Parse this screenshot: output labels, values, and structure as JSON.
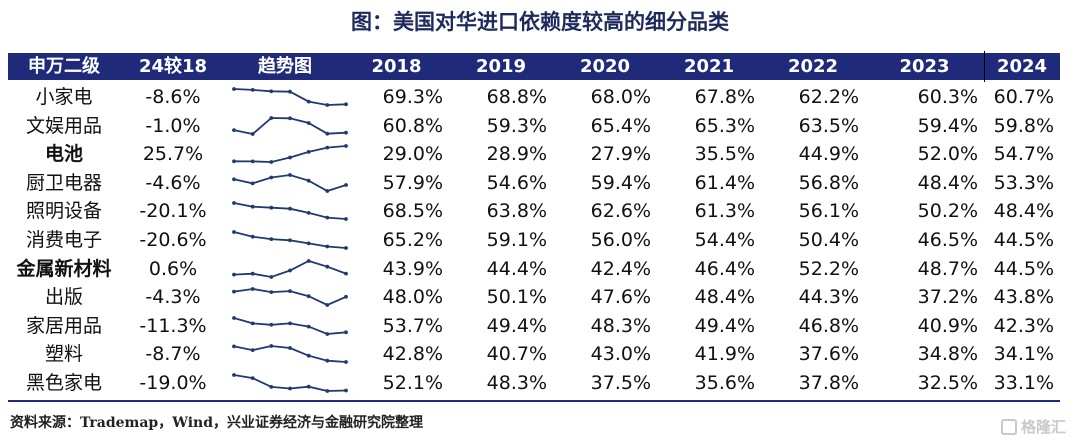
{
  "title": "图：美国对华进口依赖度较高的细分品类",
  "header": {
    "name": "申万二级",
    "change": "24较18",
    "trend": "趋势图",
    "years": [
      "2018",
      "2019",
      "2020",
      "2021",
      "2022",
      "2023",
      "2024"
    ]
  },
  "rows": [
    {
      "name": "小家电",
      "bold": false,
      "change": "-8.6%",
      "values": [
        "69.3%",
        "68.8%",
        "68.0%",
        "67.8%",
        "62.2%",
        "60.3%",
        "60.7%"
      ]
    },
    {
      "name": "文娱用品",
      "bold": false,
      "change": "-1.0%",
      "values": [
        "60.8%",
        "59.3%",
        "65.4%",
        "65.3%",
        "63.5%",
        "59.4%",
        "59.8%"
      ]
    },
    {
      "name": "电池",
      "bold": true,
      "change": "25.7%",
      "values": [
        "29.0%",
        "28.9%",
        "27.9%",
        "35.5%",
        "44.9%",
        "52.0%",
        "54.7%"
      ]
    },
    {
      "name": "厨卫电器",
      "bold": false,
      "change": "-4.6%",
      "values": [
        "57.9%",
        "54.6%",
        "59.4%",
        "61.4%",
        "56.8%",
        "48.4%",
        "53.3%"
      ]
    },
    {
      "name": "照明设备",
      "bold": false,
      "change": "-20.1%",
      "values": [
        "68.5%",
        "63.8%",
        "62.6%",
        "61.3%",
        "56.1%",
        "50.2%",
        "48.4%"
      ]
    },
    {
      "name": "消费电子",
      "bold": false,
      "change": "-20.6%",
      "values": [
        "65.2%",
        "59.1%",
        "56.0%",
        "54.4%",
        "50.4%",
        "46.5%",
        "44.5%"
      ]
    },
    {
      "name": "金属新材料",
      "bold": true,
      "change": "0.6%",
      "values": [
        "43.9%",
        "44.4%",
        "42.4%",
        "46.4%",
        "52.2%",
        "48.7%",
        "44.5%"
      ]
    },
    {
      "name": "出版",
      "bold": false,
      "change": "-4.3%",
      "values": [
        "48.0%",
        "50.1%",
        "47.6%",
        "48.4%",
        "44.3%",
        "37.2%",
        "43.8%"
      ]
    },
    {
      "name": "家居用品",
      "bold": false,
      "change": "-11.3%",
      "values": [
        "53.7%",
        "49.4%",
        "48.3%",
        "49.4%",
        "46.8%",
        "40.9%",
        "42.3%"
      ]
    },
    {
      "name": "塑料",
      "bold": false,
      "change": "-8.7%",
      "values": [
        "42.8%",
        "40.7%",
        "43.0%",
        "41.9%",
        "37.6%",
        "34.8%",
        "34.1%"
      ]
    },
    {
      "name": "黑色家电",
      "bold": false,
      "change": "-19.0%",
      "values": [
        "52.1%",
        "48.3%",
        "37.5%",
        "35.6%",
        "37.8%",
        "32.5%",
        "33.1%"
      ]
    }
  ],
  "source": "资料来源：Trademap，Wind，兴业证券经济与金融研究院整理",
  "watermark": "格隆汇",
  "colors": {
    "header_bg": "#1f2a7a",
    "spark": "#1f3a6e"
  }
}
